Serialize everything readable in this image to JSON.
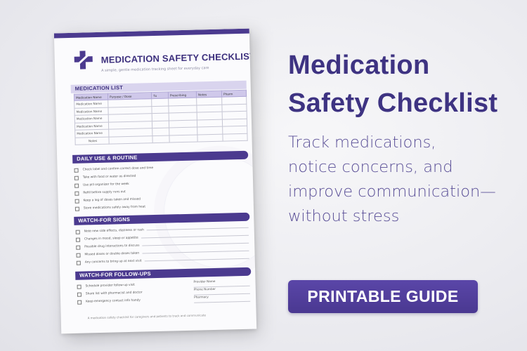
{
  "document": {
    "title": "MEDICATION SAFETY CHECKLIST",
    "tagline": "A simple, gentle medication tracking sheet for everyday care",
    "medication_list": {
      "heading": "MEDICATION LIST",
      "columns": [
        "Medication Name",
        "Purpose / Dose",
        "Tx",
        "Prescribing",
        "Notes",
        "Pharm"
      ],
      "rows": [
        "Medication Name",
        "Medication Name",
        "Medication Name",
        "Medication Name",
        "Medication Name",
        "Notes"
      ]
    },
    "daily_use": {
      "heading": "DAILY USE & ROUTINE",
      "items": [
        "Check label and confirm correct dose and time",
        "Take with food or water as directed",
        "Use pill organizer for the week",
        "Refill before supply runs out",
        "Keep a log of doses taken and missed",
        "Store medications safely away from heat"
      ]
    },
    "watch_for": {
      "heading": "WATCH-FOR SIGNS",
      "items": [
        "Note new side effects, dizziness or rash",
        "Changes in mood, sleep or appetite",
        "Possible drug interactions to discuss",
        "Missed doses or double doses taken",
        "Any concerns to bring up at next visit"
      ]
    },
    "follow_up": {
      "heading": "WATCH-FOR FOLLOW-UPS",
      "items": [
        "Schedule provider follow-up visit",
        "Share list with pharmacist and doctor",
        "Keep emergency contact info handy"
      ],
      "side_labels": [
        "Provider Name",
        "Phone Number",
        "Pharmacy"
      ]
    },
    "footer": "A medication safety checklist for caregivers and patients to track and communicate"
  },
  "hero": {
    "title_line1": "Medication",
    "title_line2": "Safety Checklist",
    "subtitle_line1": "Track medications,",
    "subtitle_line2": "notice concerns, and",
    "subtitle_line3": "improve communication—",
    "subtitle_line4": "without stress"
  },
  "cta": {
    "label": "PRINTABLE GUIDE"
  },
  "colors": {
    "accent": "#4b3a8f",
    "title": "#3e3382",
    "subtitle": "#5a4f97"
  }
}
